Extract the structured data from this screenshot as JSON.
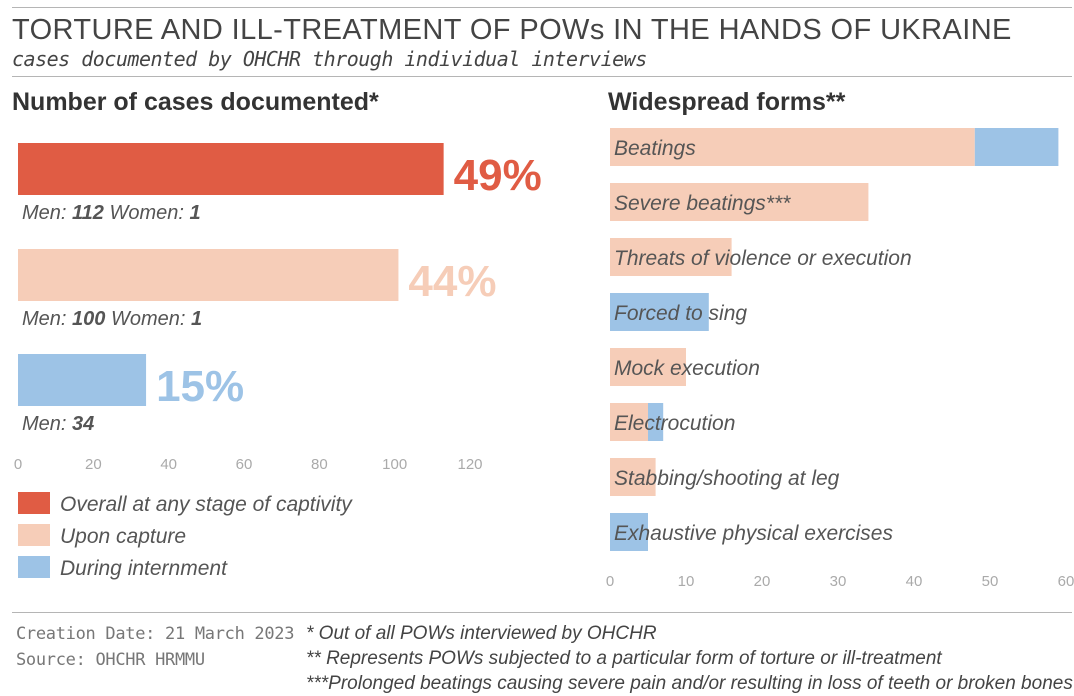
{
  "header": {
    "title": "TORTURE AND ILL-TREATMENT OF POWs IN THE HANDS OF UKRAINE",
    "subtitle": "cases documented by OHCHR through individual interviews"
  },
  "left_panel": {
    "title": "Number of cases documented*"
  },
  "right_panel": {
    "title": "Widespread forms**"
  },
  "colors": {
    "overall": "#e05c44",
    "capture": "#f6cdb8",
    "internment": "#9dc3e6"
  },
  "chart_data": [
    {
      "type": "bar",
      "orientation": "horizontal",
      "title": "Number of cases documented*",
      "xlim": [
        0,
        120
      ],
      "x_ticks": [
        "0",
        "20",
        "40",
        "60",
        "80",
        "100",
        "120"
      ],
      "series": [
        {
          "name": "Overall at any stage of captivity",
          "value": 113,
          "percent_label": "49%",
          "men_label": "Men:",
          "men": "112",
          "women_label": "Women:",
          "women": "1",
          "color": "#e05c44"
        },
        {
          "name": "Upon capture",
          "value": 101,
          "percent_label": "44%",
          "men_label": "Men:",
          "men": "100",
          "women_label": "Women:",
          "women": "1",
          "color": "#f6cdb8"
        },
        {
          "name": "During internment",
          "value": 34,
          "percent_label": "15%",
          "men_label": "Men:",
          "men": "34",
          "color": "#9dc3e6"
        }
      ],
      "legend": [
        "Overall at any stage of captivity",
        "Upon capture",
        "During internment"
      ],
      "legend_position": "bottom-left"
    },
    {
      "type": "bar",
      "orientation": "horizontal",
      "stacked": true,
      "title": "Widespread forms**",
      "xlim": [
        0,
        60
      ],
      "x_ticks": [
        "0",
        "10",
        "20",
        "30",
        "40",
        "50",
        "60"
      ],
      "stack_series": [
        "Upon capture",
        "During internment"
      ],
      "categories": [
        "Beatings",
        "Severe beatings***",
        "Threats of violence or execution",
        "Forced to sing",
        "Mock execution",
        "Electrocution",
        "Stabbing/shooting at leg",
        "Exhaustive physical exercises"
      ],
      "capture": [
        48,
        34,
        16,
        0,
        10,
        5,
        6,
        0
      ],
      "internment": [
        11,
        0,
        0,
        13,
        0,
        2,
        0,
        5
      ]
    }
  ],
  "footer": {
    "creation_date": "Creation Date: 21 March 2023",
    "source": "Source: OHCHR HRMMU",
    "note1": "* Out of all POWs interviewed by OHCHR",
    "note2": "** Represents POWs subjected to a particular form of torture or ill-treatment",
    "note3": "***Prolonged beatings causing severe pain and/or resulting in loss of teeth or broken bones"
  }
}
